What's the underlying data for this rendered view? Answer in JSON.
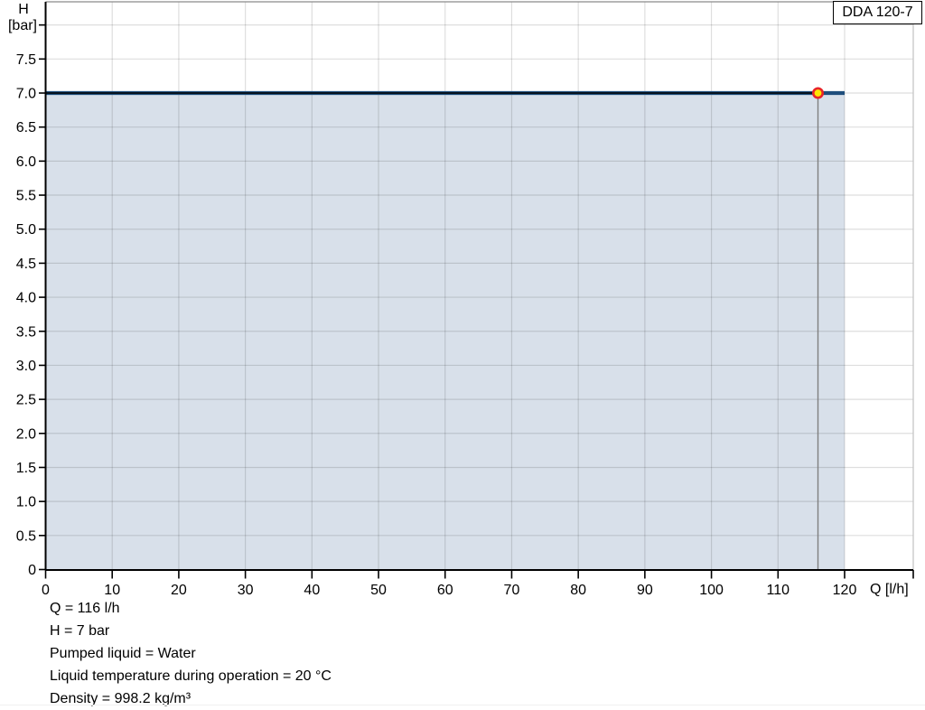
{
  "header": {
    "model_label": "DDA 120-7"
  },
  "chart_data": {
    "type": "area",
    "title": "",
    "xlabel": "Q [l/h]",
    "ylabel": "H [bar]",
    "ylabel_top": "H",
    "ylabel_bottom": "[bar]",
    "xlim": [
      0,
      130.3
    ],
    "ylim": [
      0,
      8.34
    ],
    "grid": true,
    "x_ticks": [
      0,
      10,
      20,
      30,
      40,
      50,
      60,
      70,
      80,
      90,
      100,
      110,
      120
    ],
    "x_tick_labels": [
      "0",
      "10",
      "20",
      "30",
      "40",
      "50",
      "60",
      "70",
      "80",
      "90",
      "100",
      "110",
      "120"
    ],
    "y_ticks": [
      0,
      0.5,
      1,
      1.5,
      2,
      2.5,
      3,
      3.5,
      4,
      4.5,
      5,
      5.5,
      6,
      6.5,
      7,
      7.5,
      8
    ],
    "y_tick_labels": [
      "0",
      "0.5",
      "1.0",
      "1.5",
      "2.0",
      "2.5",
      "3.0",
      "3.5",
      "4.0",
      "4.5",
      "5.0",
      "5.5",
      "6.0",
      "6.5",
      "7.0",
      "7.5",
      ""
    ],
    "series": [
      {
        "name": "DDA 120-7 pump curve",
        "x": [
          0,
          120
        ],
        "y": [
          7,
          7
        ],
        "color": "#1e4e7c",
        "fill": "#d8e0ea"
      },
      {
        "name": "duty point indicator line",
        "x": [
          0,
          116
        ],
        "y": [
          7,
          7
        ],
        "color": "#000000"
      }
    ],
    "duty_point": {
      "Q": 116,
      "H": 7,
      "marker_fill": "#ffe600",
      "marker_stroke": "#e8252a"
    },
    "colors": {
      "grid": "#000000",
      "axis": "#000000",
      "top_border": "#8a8a8a",
      "right_border": "#c2c2c2",
      "duty_vline": "#7f7f7f"
    }
  },
  "footer": {
    "lines": [
      "Q = 116 l/h",
      "H = 7 bar",
      "Pumped liquid = Water",
      "Liquid temperature during operation = 20 °C",
      "Density = 998.2 kg/m³"
    ]
  }
}
